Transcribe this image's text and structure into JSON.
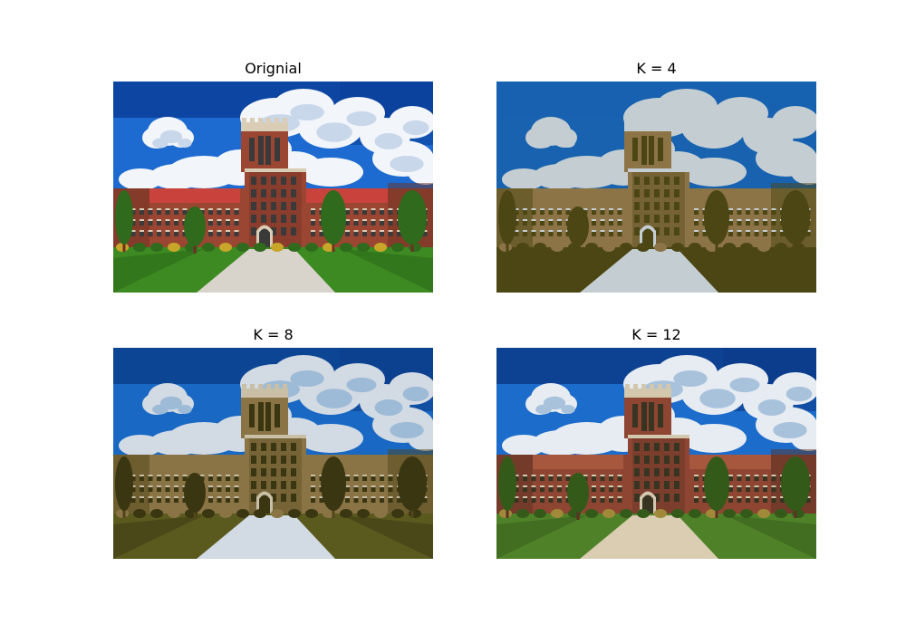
{
  "panels": [
    {
      "title": "Orignial",
      "palette": {
        "sky_top": "#0a3f9a",
        "sky": "#1d6bd0",
        "cloud": "#f2f5fa",
        "cloud_shade": "#c9d7ea",
        "roof": "#c9433c",
        "brick": "#9a4632",
        "brick_dark": "#6e2f22",
        "stone": "#d9cdb6",
        "window": "#3a3a3a",
        "grass": "#3d8a22",
        "grass_dark": "#2a6416",
        "tree": "#2f6a1d",
        "path": "#d8d4cc",
        "shrub": "#c7a62a"
      }
    },
    {
      "title": "K = 4",
      "palette": {
        "sky_top": "#1862b0",
        "sky": "#1862b0",
        "cloud": "#c4ced2",
        "cloud_shade": "#c4ced2",
        "roof": "#8c7447",
        "brick": "#8c7447",
        "brick_dark": "#4c4614",
        "stone": "#c4ced2",
        "window": "#4c4614",
        "grass": "#4c4614",
        "grass_dark": "#4c4614",
        "tree": "#4c4614",
        "path": "#c4ced2",
        "shrub": "#8c7447"
      }
    },
    {
      "title": "K = 8",
      "palette": {
        "sky_top": "#0b3f8c",
        "sky": "#1868c4",
        "cloud": "#d2dae4",
        "cloud_shade": "#9dbad6",
        "roof": "#8a7445",
        "brick": "#8a7445",
        "brick_dark": "#50461a",
        "stone": "#c9bfa7",
        "window": "#3a3612",
        "grass": "#5a5a1e",
        "grass_dark": "#3a3612",
        "tree": "#3a3612",
        "path": "#d2dae4",
        "shrub": "#8a7445"
      }
    },
    {
      "title": "K = 12",
      "palette": {
        "sky_top": "#0a3a88",
        "sky": "#1c6ccb",
        "cloud": "#e6ecf2",
        "cloud_shade": "#a9c2dc",
        "roof": "#a7573e",
        "brick": "#8e4532",
        "brick_dark": "#5c3122",
        "stone": "#d3c7ae",
        "window": "#383422",
        "grass": "#4f8228",
        "grass_dark": "#345a1a",
        "tree": "#345a1a",
        "path": "#dacdb2",
        "shrub": "#a08a3a"
      }
    }
  ]
}
